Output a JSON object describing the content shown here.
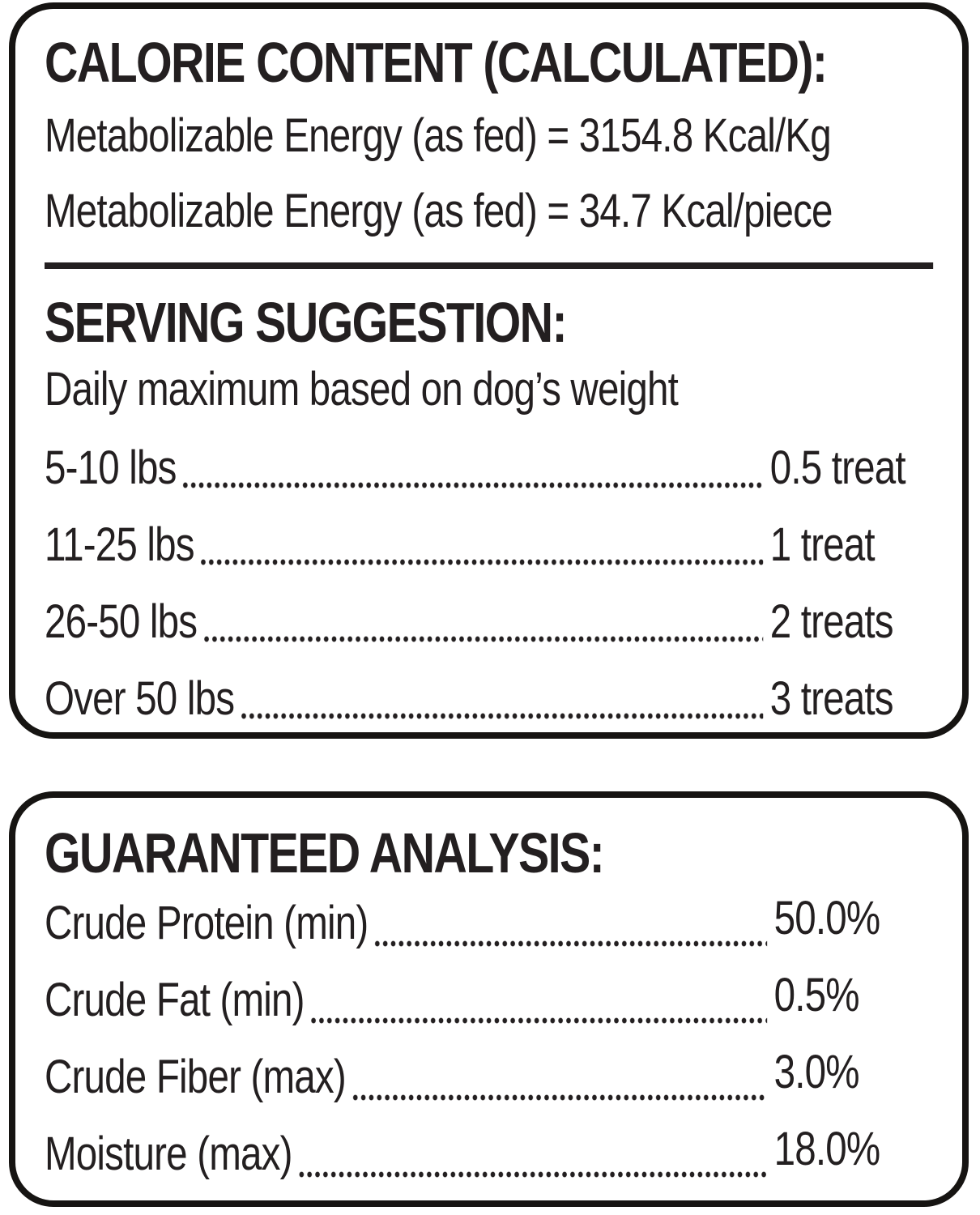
{
  "colors": {
    "ink": "#231f20",
    "border": "#161412",
    "background": "#ffffff"
  },
  "calorie_panel": {
    "title": "CALORIE CONTENT (CALCULATED):",
    "energy_lines": [
      "Metabolizable Energy (as fed) = 3154.8 Kcal/Kg",
      "Metabolizable Energy (as fed) = 34.7 Kcal/piece"
    ],
    "serving": {
      "title": "SERVING SUGGESTION:",
      "subtitle": "Daily maximum based on dog’s weight",
      "rows": [
        {
          "label": "5-10 lbs",
          "value": "0.5 treat"
        },
        {
          "label": "11-25 lbs",
          "value": "1 treat"
        },
        {
          "label": "26-50 lbs",
          "value": "2 treats"
        },
        {
          "label": "Over 50 lbs",
          "value": "3 treats"
        }
      ]
    }
  },
  "analysis_panel": {
    "title": "GUARANTEED ANALYSIS:",
    "rows": [
      {
        "label": "Crude Protein (min)",
        "value": "50.0%"
      },
      {
        "label": "Crude Fat (min)",
        "value": "0.5%"
      },
      {
        "label": "Crude Fiber (max)",
        "value": "3.0%"
      },
      {
        "label": "Moisture (max)",
        "value": "18.0%"
      }
    ]
  }
}
